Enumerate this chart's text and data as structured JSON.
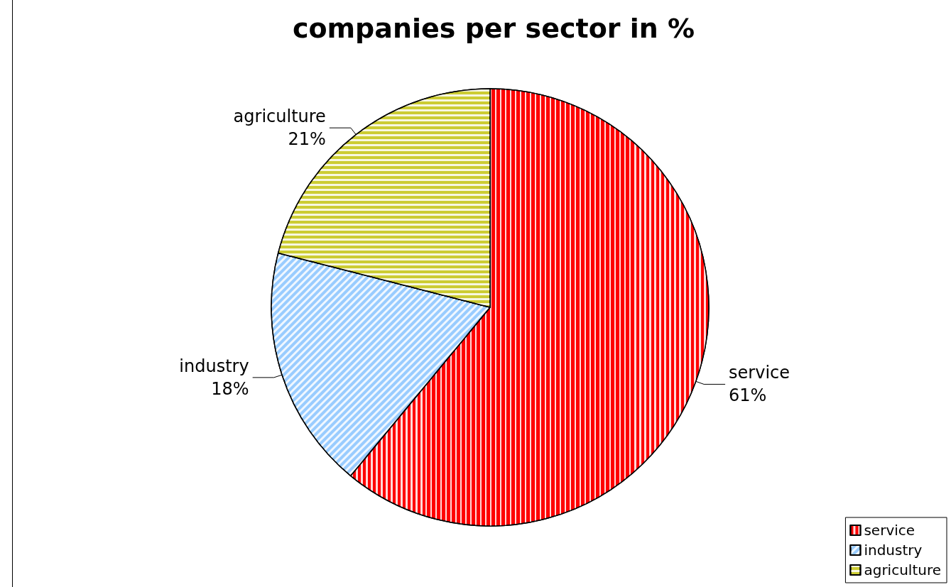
{
  "chart_data": {
    "type": "pie",
    "title": "companies per sector in %",
    "categories": [
      "service",
      "industry",
      "agriculture"
    ],
    "values": [
      61,
      18,
      21
    ],
    "colors": [
      "#ff0000",
      "#99ccff",
      "#cccc33"
    ],
    "value_labels": [
      "61%",
      "18%",
      "21%"
    ],
    "legend": "bottom right"
  }
}
